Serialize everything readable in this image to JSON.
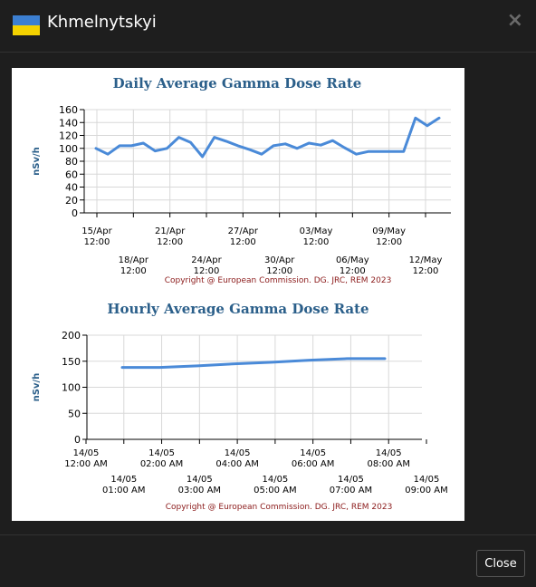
{
  "header": {
    "title": "Khmelnytskyi",
    "close_icon": "×"
  },
  "footer": {
    "close_label": "Close"
  },
  "copyright": "Copyright @ European Commission. DG. JRC, REM 2023",
  "colors": {
    "line": "#4a8ad8",
    "title": "#2b5f8a",
    "copyright": "#8b1a1a"
  },
  "chart_data": [
    {
      "type": "line",
      "title": "Daily Average Gamma Dose Rate",
      "ylabel": "nSv/h",
      "ylim": [
        0,
        160
      ],
      "yticks": [
        0,
        20,
        40,
        60,
        80,
        100,
        120,
        140,
        160
      ],
      "grid": true,
      "x_labels": [
        [
          "15/Apr",
          "12:00"
        ],
        [
          "18/Apr",
          "12:00"
        ],
        [
          "21/Apr",
          "12:00"
        ],
        [
          "24/Apr",
          "12:00"
        ],
        [
          "27/Apr",
          "12:00"
        ],
        [
          "30/Apr",
          "12:00"
        ],
        [
          "03/May",
          "12:00"
        ],
        [
          "06/May",
          "12:00"
        ],
        [
          "09/May",
          "12:00"
        ],
        [
          "12/May",
          "12:00"
        ]
      ],
      "values": [
        100,
        91,
        104,
        104,
        108,
        96,
        100,
        117,
        109,
        87,
        117,
        111,
        104,
        98,
        91,
        104,
        107,
        100,
        108,
        105,
        112,
        101,
        91,
        95,
        95,
        95,
        95,
        147,
        135,
        147
      ]
    },
    {
      "type": "line",
      "title": "Hourly Average Gamma Dose Rate",
      "ylabel": "nSv/h",
      "ylim": [
        0,
        200
      ],
      "yticks": [
        0,
        50,
        100,
        150,
        200
      ],
      "grid": true,
      "x_labels": [
        [
          "14/05",
          "12:00 AM"
        ],
        [
          "14/05",
          "01:00 AM"
        ],
        [
          "14/05",
          "02:00 AM"
        ],
        [
          "14/05",
          "03:00 AM"
        ],
        [
          "14/05",
          "04:00 AM"
        ],
        [
          "14/05",
          "05:00 AM"
        ],
        [
          "14/05",
          "06:00 AM"
        ],
        [
          "14/05",
          "07:00 AM"
        ],
        [
          "14/05",
          "08:00 AM"
        ],
        [
          "14/05",
          "09:00 AM"
        ]
      ],
      "x": [
        1,
        2,
        3,
        4,
        5,
        6,
        7,
        8
      ],
      "values": [
        138,
        138,
        141,
        145,
        148,
        152,
        155,
        155
      ]
    }
  ]
}
